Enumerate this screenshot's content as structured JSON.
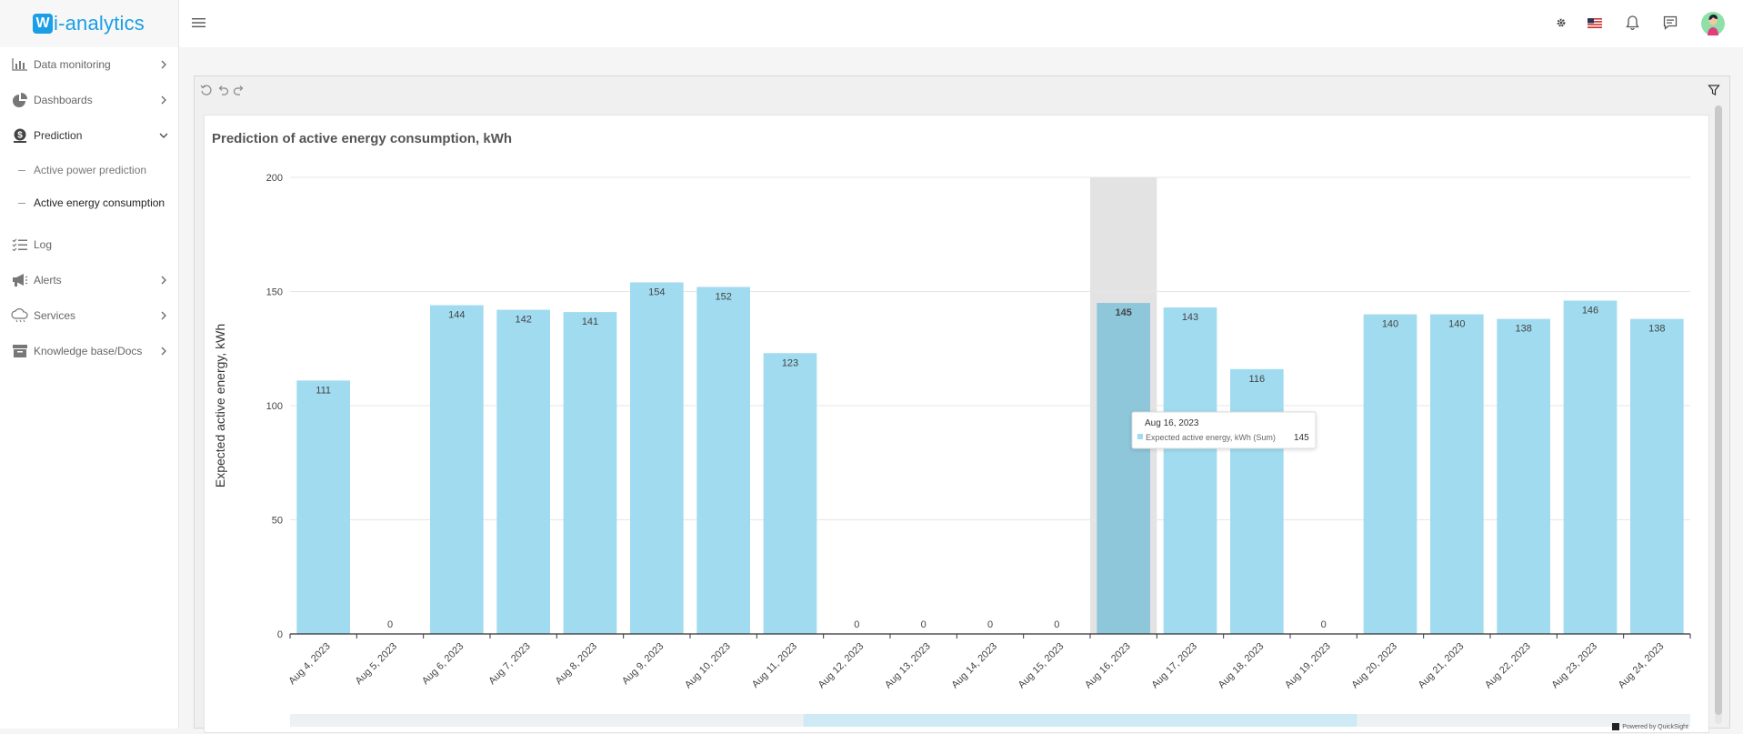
{
  "app": {
    "logo_letter": "W",
    "logo_text": "i-analytics"
  },
  "sidebar": {
    "items": [
      {
        "label": "Data monitoring",
        "icon": "bar-chart-icon",
        "chevron": "right"
      },
      {
        "label": "Dashboards",
        "icon": "pie-chart-icon",
        "chevron": "right"
      },
      {
        "label": "Prediction",
        "icon": "dollar-coin-icon",
        "chevron": "down"
      },
      {
        "label": "Log",
        "icon": "checklist-icon",
        "chevron": ""
      },
      {
        "label": "Alerts",
        "icon": "megaphone-icon",
        "chevron": "right"
      },
      {
        "label": "Services",
        "icon": "cloud-icon",
        "chevron": "right"
      },
      {
        "label": "Knowledge base/Docs",
        "icon": "archive-box-icon",
        "chevron": "right"
      }
    ],
    "sub_items": [
      {
        "label": "Active power prediction"
      },
      {
        "label": "Active energy consumption"
      }
    ]
  },
  "visual": {
    "title": "Prediction of active energy consumption, kWh",
    "powered_by": "Powered by QuickSight"
  },
  "tooltip": {
    "date": "Aug 16, 2023",
    "series": "Expected active energy, kWh (Sum)",
    "value": "145"
  },
  "chart_data": {
    "type": "bar",
    "title": "Prediction of active energy consumption, kWh",
    "xlabel": "",
    "ylabel": "Expected active energy, kWh",
    "ylim": [
      0,
      200
    ],
    "yticks": [
      0,
      50,
      100,
      150,
      200
    ],
    "grid": true,
    "highlighted_category": "Aug 16, 2023",
    "categories": [
      "Aug 4, 2023",
      "Aug 5, 2023",
      "Aug 6, 2023",
      "Aug 7, 2023",
      "Aug 8, 2023",
      "Aug 9, 2023",
      "Aug 10, 2023",
      "Aug 11, 2023",
      "Aug 12, 2023",
      "Aug 13, 2023",
      "Aug 14, 2023",
      "Aug 15, 2023",
      "Aug 16, 2023",
      "Aug 17, 2023",
      "Aug 18, 2023",
      "Aug 19, 2023",
      "Aug 20, 2023",
      "Aug 21, 2023",
      "Aug 22, 2023",
      "Aug 23, 2023",
      "Aug 24, 2023"
    ],
    "values": [
      111,
      0,
      144,
      142,
      141,
      154,
      152,
      123,
      0,
      0,
      0,
      0,
      145,
      143,
      116,
      0,
      140,
      140,
      138,
      146,
      138
    ],
    "bar_color": "#a0dbef",
    "highlight_bar_color": "#8ec6da"
  }
}
